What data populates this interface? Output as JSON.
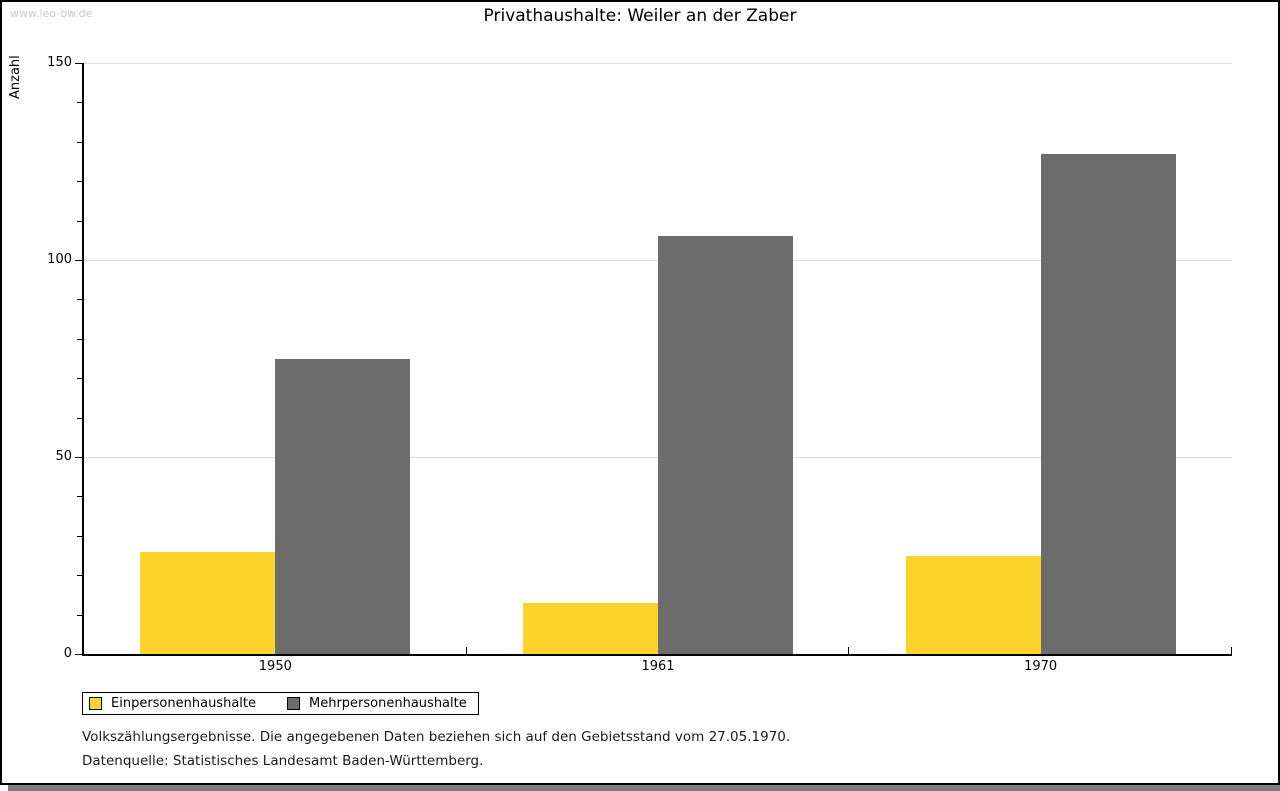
{
  "window": {
    "watermark": "www.leo-bw.de"
  },
  "chart_data": {
    "type": "bar",
    "title": "Privathaushalte: Weiler an der Zaber",
    "ylabel": "Anzahl",
    "xlabel": "",
    "categories": [
      "1950",
      "1961",
      "1970"
    ],
    "series": [
      {
        "name": "Einpersonenhaushalte",
        "color": "#FCD32B",
        "values": [
          26,
          13,
          25
        ]
      },
      {
        "name": "Mehrpersonenhaushalte",
        "color": "#6C6C6C",
        "values": [
          75,
          106,
          127
        ]
      }
    ],
    "ylim": [
      0,
      150
    ],
    "ytick_major": 50,
    "ytick_minor": 10,
    "grid": true,
    "legend_position": "bottom-left"
  },
  "footer": {
    "line1": "Volkszählungsergebnisse. Die angegebenen Daten beziehen sich auf den Gebietsstand vom 27.05.1970.",
    "line2": "Datenquelle: Statistisches Landesamt Baden-Württemberg."
  }
}
